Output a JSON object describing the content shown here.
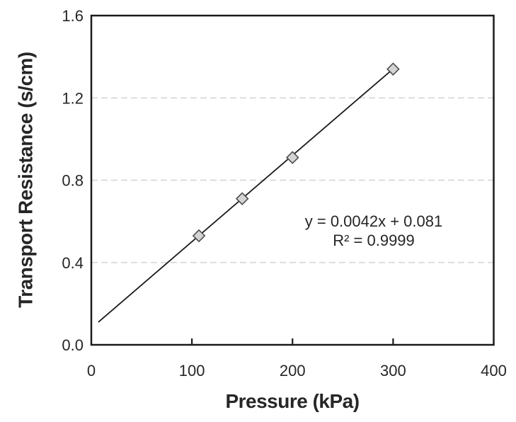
{
  "chart_data": {
    "type": "scatter",
    "title": "",
    "xlabel": "Pressure (kPa)",
    "ylabel": "Transport Resistance (s/cm)",
    "x": [
      107,
      150,
      200,
      300
    ],
    "y": [
      0.53,
      0.71,
      0.91,
      1.34
    ],
    "xlim": [
      0,
      400
    ],
    "ylim": [
      0.0,
      1.6
    ],
    "x_ticks": [
      0,
      100,
      200,
      300,
      400
    ],
    "y_tick_labels": [
      "0.0",
      "0.4",
      "0.8",
      "1.2",
      "1.6"
    ],
    "grid": {
      "horizontal_dashed_at": [
        0.4,
        0.8,
        1.2
      ],
      "color": "#d9d9d9",
      "vertical": false
    },
    "legend": "none",
    "marker": {
      "shape": "diamond",
      "fill": "#d4d4d4",
      "stroke": "#4d4d4d"
    },
    "trendline": {
      "slope": 0.0042,
      "intercept": 0.081,
      "x_start": 7,
      "x_end": 300,
      "color": "#1a1a1a",
      "equation_label": "y = 0.0042x + 0.081",
      "r2_label": "R² = 0.9999"
    },
    "frame_color": "#1a1a1a",
    "background": "#ffffff"
  }
}
